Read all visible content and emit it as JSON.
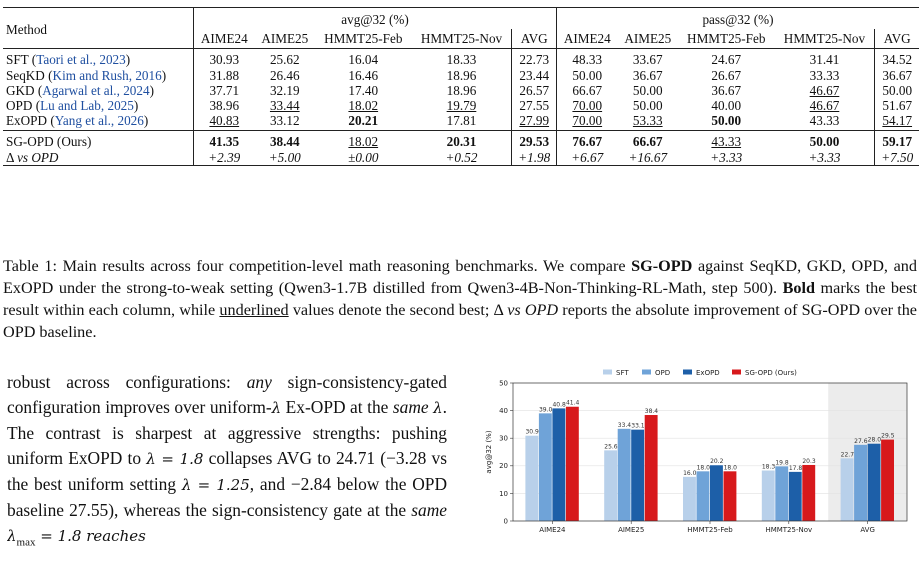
{
  "table": {
    "method_header": "Method",
    "avg_group_header": "avg@32 (%)",
    "pass_group_header": "pass@32 (%)",
    "columns": [
      "AIME24",
      "AIME25",
      "HMMT25-Feb",
      "HMMT25-Nov",
      "AVG"
    ],
    "rows": [
      {
        "name": "SFT",
        "cite": "Taori et al., 2023",
        "avg": [
          "30.93",
          "25.62",
          "16.04",
          "18.33",
          "22.73"
        ],
        "pass": [
          "48.33",
          "33.67",
          "24.67",
          "31.41",
          "34.52"
        ]
      },
      {
        "name": "SeqKD",
        "cite": "Kim and Rush, 2016",
        "avg": [
          "31.88",
          "26.46",
          "16.46",
          "18.96",
          "23.44"
        ],
        "pass": [
          "50.00",
          "36.67",
          "26.67",
          "33.33",
          "36.67"
        ]
      },
      {
        "name": "GKD",
        "cite": "Agarwal et al., 2024",
        "avg": [
          "37.71",
          "32.19",
          "17.40",
          "18.96",
          "26.57"
        ],
        "pass": [
          "66.67",
          "50.00",
          "36.67",
          "46.67",
          "50.00"
        ]
      },
      {
        "name": "OPD",
        "cite": "Lu and Lab, 2025",
        "avg": [
          "38.96",
          "33.44",
          "18.02",
          "19.79",
          "27.55"
        ],
        "pass": [
          "70.00",
          "50.00",
          "40.00",
          "46.67",
          "51.67"
        ]
      },
      {
        "name": "ExOPD",
        "cite": "Yang et al., 2026",
        "avg": [
          "40.83",
          "33.12",
          "20.21",
          "17.81",
          "27.99"
        ],
        "pass": [
          "70.00",
          "53.33",
          "50.00",
          "43.33",
          "54.17"
        ]
      }
    ],
    "ours": {
      "name": "SG-OPD (Ours)",
      "avg": [
        "41.35",
        "38.44",
        "18.02",
        "20.31",
        "29.53"
      ],
      "pass": [
        "76.67",
        "66.67",
        "43.33",
        "50.00",
        "59.17"
      ]
    },
    "delta": {
      "name_symbol": "Δ",
      "name_rest": "vs OPD",
      "avg": [
        "+2.39",
        "+5.00",
        "±0.00",
        "+0.52",
        "+1.98"
      ],
      "pass": [
        "+6.67",
        "+16.67",
        "+3.33",
        "+3.33",
        "+7.50"
      ]
    }
  },
  "caption": {
    "t1": "Table 1: Main results across four competition-level math reasoning benchmarks. We compare ",
    "t2": "SG-OPD",
    "t3": " against SeqKD, GKD, OPD, and ExOPD under the strong-to-weak setting (Qwen3-1.7B distilled from Qwen3-4B-Non-Thinking-RL-Math, step 500). ",
    "t4": "Bold",
    "t5": " marks the best result within each column, while ",
    "t6": "underlined",
    "t7": " values denote the second best; Δ ",
    "t8": "vs OPD",
    "t9": " reports the absolute improvement of SG-OPD over the OPD baseline."
  },
  "body_text": {
    "p1": "robust across configurations: ",
    "p2": "any",
    "p3": " sign-consistency-gated configuration improves over uniform-",
    "p4": "λ",
    "p5": " Ex-OPD at the ",
    "p6": "same",
    "p7": " ",
    "p8": "λ",
    "p9": ". The contrast is sharpest at aggressive strengths: pushing uniform ExOPD to ",
    "p10": "λ = 1.8",
    "p11": " collapses AVG to 24.71 (−3.28 vs the best uniform setting ",
    "p12": "λ = 1.25",
    "p13": ", and −2.84 below the OPD baseline 27.55), whereas the sign-consistency gate at the ",
    "p14": "same",
    "p15": " ",
    "p16": "λ",
    "p17": "max",
    "p18": " = 1.8 reaches"
  },
  "chart_data": {
    "type": "bar",
    "title": "",
    "xlabel": "",
    "ylabel": "avg@32 (%)",
    "ylim": [
      0,
      50
    ],
    "yticks": [
      0,
      10,
      20,
      30,
      40,
      50
    ],
    "categories": [
      "AIME24",
      "AIME25",
      "HMMT25-Feb",
      "HMMT25-Nov",
      "AVG"
    ],
    "highlight_category": "AVG",
    "legend_position": "top",
    "series": [
      {
        "name": "SFT",
        "color": "#b8d0ea",
        "values": [
          30.9,
          25.6,
          16.0,
          18.3,
          22.7
        ],
        "labels": [
          "30.9",
          "25.6",
          "16.0",
          "18.3",
          "22.7"
        ]
      },
      {
        "name": "OPD",
        "color": "#6fa3d8",
        "values": [
          39.0,
          33.4,
          18.0,
          19.8,
          27.6
        ],
        "labels": [
          "39.0",
          "33.4",
          "18.0",
          "19.8",
          "27.6"
        ]
      },
      {
        "name": "ExOPD",
        "color": "#1d5fa8",
        "values": [
          40.8,
          33.1,
          20.2,
          17.8,
          28.0
        ],
        "labels": [
          "40.8",
          "33.1",
          "20.2",
          "17.8",
          "28.0"
        ]
      },
      {
        "name": "SG-OPD (Ours)",
        "color": "#d7191c",
        "values": [
          41.4,
          38.4,
          18.0,
          20.3,
          29.5
        ],
        "labels": [
          "41.4",
          "38.4",
          "18.0",
          "20.3",
          "29.5"
        ]
      }
    ]
  }
}
